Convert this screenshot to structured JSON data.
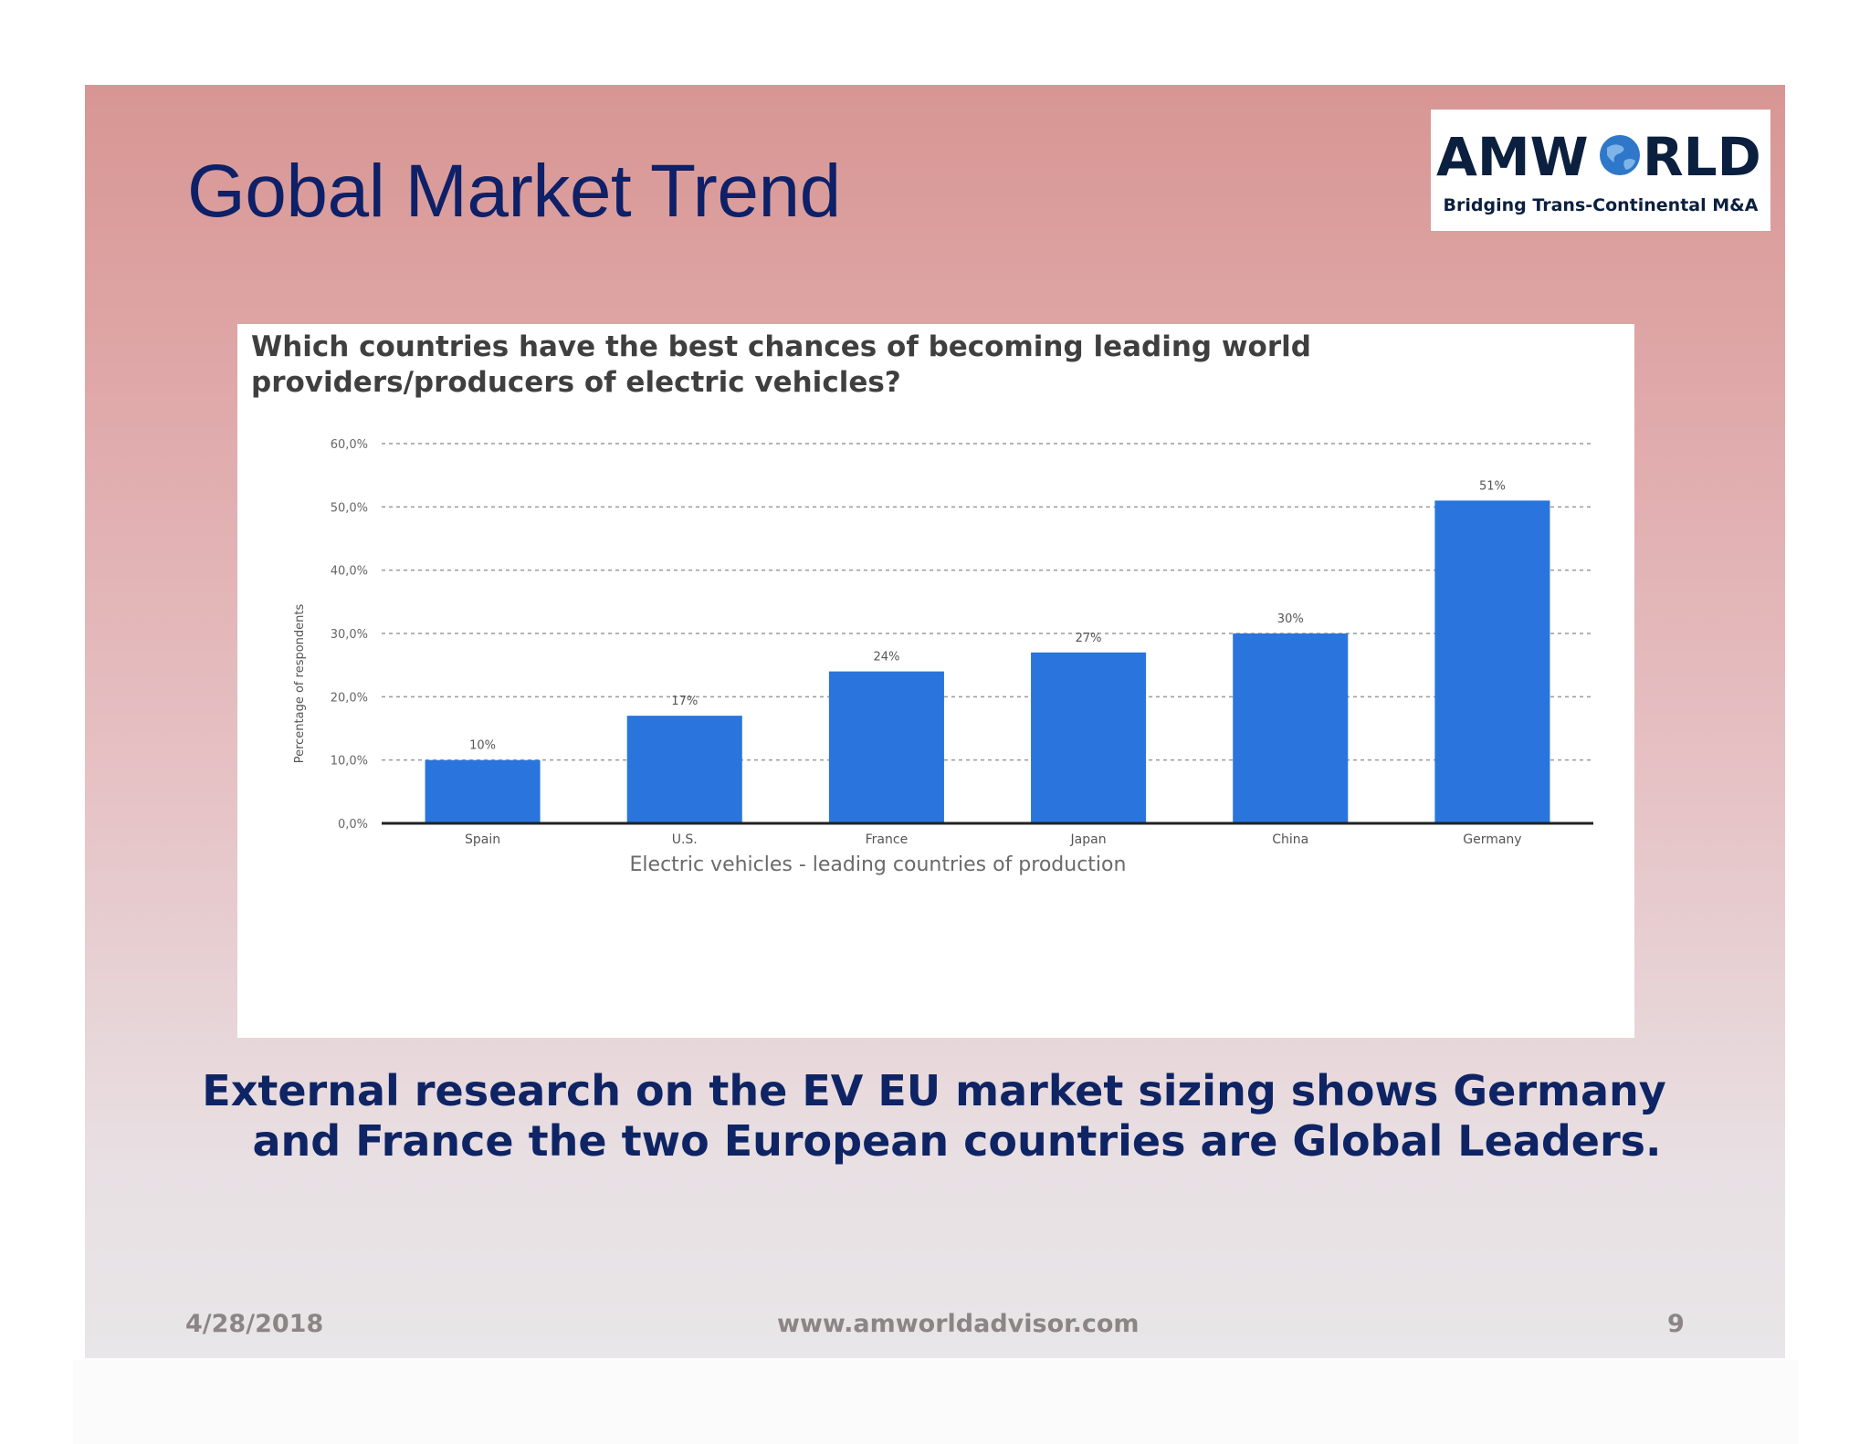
{
  "slide": {
    "title": "Gobal Market Trend",
    "caption_line1": "External research on the EV EU market sizing shows Germany",
    "caption_line2": "and France the two European countries are  Global Leaders.",
    "footer_date": "4/28/2018",
    "footer_url": "www.amworldadvisor.com",
    "page_number": "9"
  },
  "logo": {
    "wordmark": "AMWORLD",
    "tagline": "Bridging Trans-Continental M&A"
  },
  "colors": {
    "title": "#0d2068",
    "bar": "#2a74dd",
    "caption": "#0e2464",
    "footer": "#8b8586"
  },
  "chart_data": {
    "type": "bar",
    "title": "Which countries have the best chances of becoming leading world providers/producers of electric vehicles?",
    "xlabel": "Electric vehicles - leading countries of production",
    "ylabel": "Percentage of respondents",
    "categories": [
      "Spain",
      "U.S.",
      "France",
      "Japan",
      "China",
      "Germany"
    ],
    "values": [
      10,
      17,
      24,
      27,
      30,
      51
    ],
    "data_labels": [
      "10%",
      "17%",
      "24%",
      "27%",
      "30%",
      "51%"
    ],
    "yticks": [
      0,
      10,
      20,
      30,
      40,
      50,
      60
    ],
    "ytick_labels": [
      "0,0%",
      "10,0%",
      "20,0%",
      "30,0%",
      "40,0%",
      "50,0%",
      "60,0%"
    ],
    "ylim": [
      0,
      60
    ],
    "grid": true,
    "legend": false
  }
}
